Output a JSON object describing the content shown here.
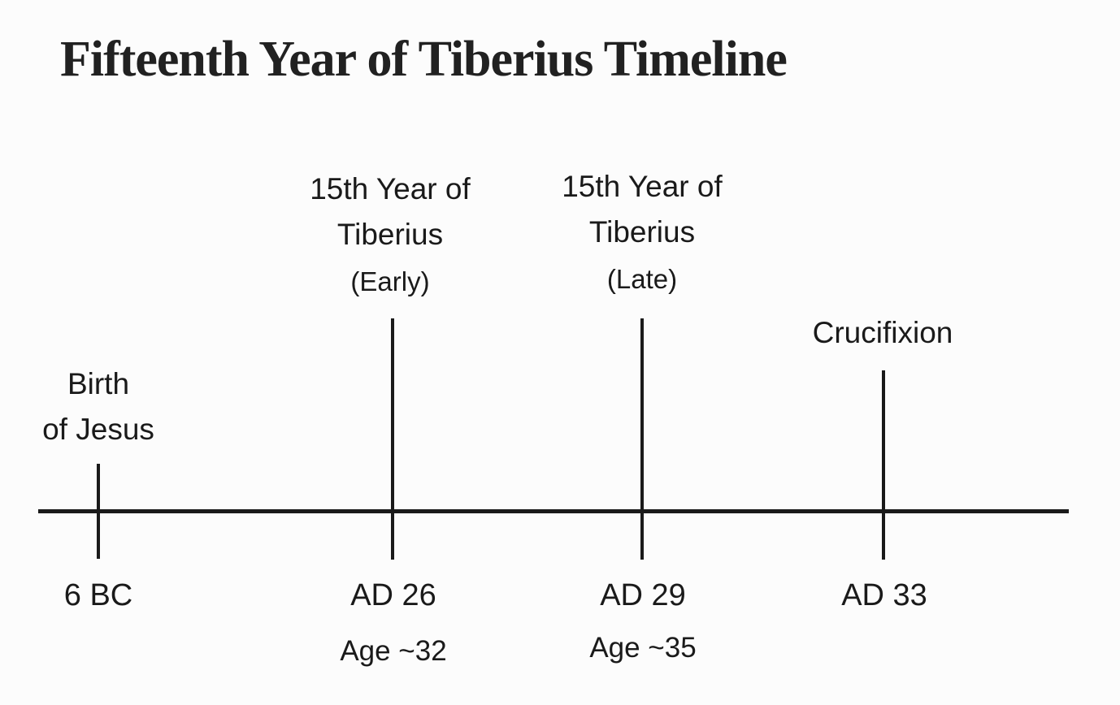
{
  "title": "Fifteenth Year of Tiberius Timeline",
  "diagram": {
    "type": "timeline",
    "axis": "horizontal",
    "events": {
      "birth": {
        "label_line1": "Birth",
        "label_line2": "of Jesus",
        "date": "6 BC"
      },
      "early": {
        "label_line1": "15th Year of",
        "label_line2": "Tiberius",
        "qualifier": "(Early)",
        "date": "AD 26",
        "age": "Age ~32"
      },
      "late": {
        "label_line1": "15th Year of",
        "label_line2": "Tiberius",
        "qualifier": "(Late)",
        "date": "AD 29",
        "age": "Age ~35"
      },
      "crucifixion": {
        "label": "Crucifixion",
        "date": "AD 33"
      }
    }
  },
  "colors": {
    "ink": "#1a1a1a",
    "background": "#fcfcfc"
  }
}
